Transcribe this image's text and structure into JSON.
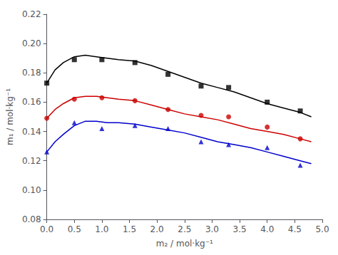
{
  "chart_data": {
    "type": "line",
    "xlabel": "m₂ / mol·kg⁻¹",
    "ylabel": "m₁ / mol·kg⁻¹",
    "xlim": [
      0.0,
      5.0
    ],
    "ylim": [
      0.08,
      0.22
    ],
    "xticks": [
      {
        "value": 0.0,
        "label": "0.0"
      },
      0.5,
      {
        "value": 1.0,
        "label": "1.0"
      },
      1.5,
      {
        "value": 2.0,
        "label": "2.0"
      },
      2.5,
      {
        "value": 3.0,
        "label": "3.0"
      },
      3.5,
      {
        "value": 4.0,
        "label": "4.0"
      },
      4.5,
      {
        "value": 5.0,
        "label": "5.0"
      }
    ],
    "yticks": [
      0.08,
      {
        "value": 0.1,
        "label": "0.10"
      },
      0.12,
      0.14,
      0.16,
      0.18,
      {
        "value": 0.2,
        "label": "0.20"
      },
      0.22
    ],
    "grid": false,
    "series": [
      {
        "type": "line",
        "color": "#000000",
        "x": [
          0.0,
          0.15,
          0.3,
          0.5,
          0.7,
          0.9,
          1.1,
          1.3,
          1.6,
          1.9,
          2.2,
          2.5,
          2.8,
          3.1,
          3.4,
          3.7,
          4.0,
          4.3,
          4.6,
          4.8
        ],
        "values": [
          0.173,
          0.182,
          0.187,
          0.191,
          0.192,
          0.191,
          0.19,
          0.189,
          0.188,
          0.185,
          0.181,
          0.177,
          0.173,
          0.17,
          0.167,
          0.163,
          0.159,
          0.156,
          0.153,
          0.15
        ]
      },
      {
        "type": "line",
        "color": "#cc0000",
        "x": [
          0.0,
          0.15,
          0.3,
          0.5,
          0.7,
          0.9,
          1.1,
          1.3,
          1.6,
          1.9,
          2.2,
          2.5,
          2.8,
          3.1,
          3.4,
          3.7,
          4.0,
          4.3,
          4.6,
          4.8
        ],
        "values": [
          0.149,
          0.155,
          0.159,
          0.163,
          0.164,
          0.164,
          0.163,
          0.162,
          0.161,
          0.158,
          0.155,
          0.152,
          0.15,
          0.148,
          0.145,
          0.142,
          0.14,
          0.138,
          0.135,
          0.133
        ]
      },
      {
        "type": "line",
        "color": "#0000cc",
        "x": [
          0.0,
          0.15,
          0.3,
          0.5,
          0.7,
          0.9,
          1.1,
          1.3,
          1.6,
          1.9,
          2.2,
          2.5,
          2.8,
          3.1,
          3.4,
          3.7,
          4.0,
          4.3,
          4.6,
          4.8
        ],
        "values": [
          0.126,
          0.133,
          0.138,
          0.144,
          0.147,
          0.147,
          0.146,
          0.146,
          0.145,
          0.143,
          0.141,
          0.139,
          0.136,
          0.133,
          0.131,
          0.129,
          0.126,
          0.123,
          0.12,
          0.118
        ]
      },
      {
        "type": "scatter",
        "color": "#000000",
        "marker": "square",
        "x": [
          0.0,
          0.5,
          1.0,
          1.6,
          2.2,
          2.8,
          3.3,
          4.0,
          4.6
        ],
        "values": [
          0.173,
          0.189,
          0.189,
          0.187,
          0.179,
          0.171,
          0.17,
          0.16,
          0.154
        ]
      },
      {
        "type": "scatter",
        "color": "#cc0000",
        "marker": "circle",
        "x": [
          0.0,
          0.5,
          1.0,
          1.6,
          2.2,
          2.8,
          3.3,
          4.0,
          4.6
        ],
        "values": [
          0.149,
          0.162,
          0.163,
          0.161,
          0.155,
          0.151,
          0.15,
          0.143,
          0.135
        ]
      },
      {
        "type": "scatter",
        "color": "#0000cc",
        "marker": "triangle",
        "x": [
          0.0,
          0.5,
          1.0,
          1.6,
          2.2,
          2.8,
          3.3,
          4.0,
          4.6
        ],
        "values": [
          0.126,
          0.146,
          0.142,
          0.144,
          0.142,
          0.133,
          0.131,
          0.129,
          0.117
        ]
      }
    ]
  }
}
